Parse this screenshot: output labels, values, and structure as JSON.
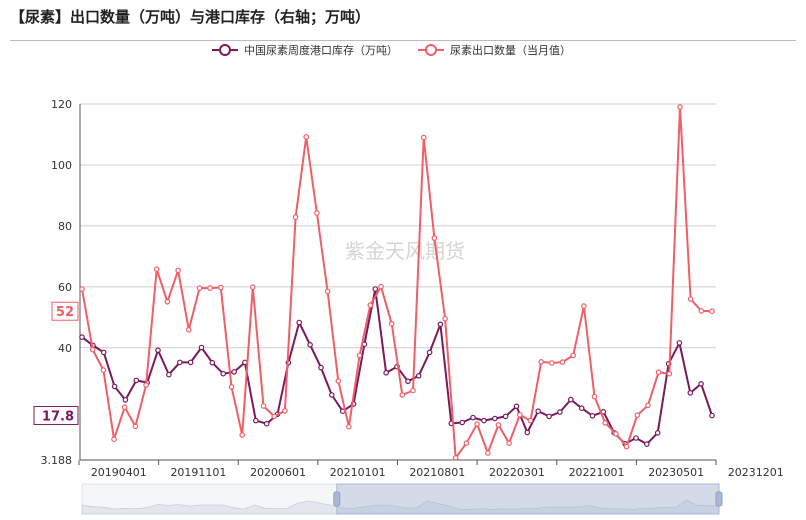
{
  "header": {
    "title": "【尿素】出口数量（万吨）与港口库存（右轴；万吨）"
  },
  "chart_data": {
    "type": "line",
    "title": "【尿素】出口数量（万吨）与港口库存（右轴；万吨）",
    "xlabel": "",
    "ylabel": "",
    "ylim": [
      3.188,
      120
    ],
    "yticks": [
      "3.188",
      "40",
      "60",
      "80",
      "100",
      "120"
    ],
    "x_tick_labels": [
      "20190401",
      "20191101",
      "20200601",
      "20210101",
      "20210801",
      "20220301",
      "20221001",
      "20230501",
      "20231201"
    ],
    "grid": true,
    "legend_position": "top-center",
    "watermark": "紫金天风期货",
    "markers": [
      {
        "series": 0,
        "label": "17.8",
        "value": 17.8
      },
      {
        "series": 1,
        "label": "52",
        "value": 52
      }
    ],
    "series": [
      {
        "name": "中国尿素周度港口库存（万吨）",
        "color": "#7a1a5c",
        "values": [
          43.5,
          40.8,
          38.5,
          27.3,
          22.9,
          29.3,
          28.6,
          39.2,
          31.2,
          35.2,
          35.2,
          40.1,
          35.1,
          31.5,
          32.1,
          35.2,
          16.1,
          15.1,
          18.2,
          35.1,
          48.3,
          41.0,
          33.5,
          24.5,
          19.2,
          21.6,
          41.2,
          59.3,
          31.8,
          33.8,
          29.0,
          30.8,
          38.5,
          47.7,
          15.2,
          15.5,
          17.1,
          16.1,
          16.8,
          17.5,
          20.8,
          12.2,
          19.2,
          17.5,
          18.9,
          23.0,
          20.2,
          17.7,
          19.0,
          12.1,
          8.5,
          10.4,
          8.4,
          12.1,
          34.8,
          41.6,
          25.2,
          28.2,
          17.8
        ]
      },
      {
        "name": "尿素出口数量（当月值）",
        "color": "#ef5f68",
        "values": [
          59.3,
          39.4,
          32.7,
          10.0,
          20.5,
          14.2,
          27.8,
          65.8,
          55.1,
          65.4,
          45.9,
          59.6,
          59.6,
          59.8,
          27.2,
          11.4,
          59.9,
          20.9,
          17.5,
          19.3,
          82.9,
          109.2,
          84.2,
          58.5,
          29.1,
          14.1,
          37.5,
          54.0,
          60.1,
          47.9,
          24.5,
          26.0,
          109.0,
          76.0,
          49.6,
          3.9,
          8.7,
          15.0,
          5.5,
          14.7,
          8.7,
          18.0,
          16.1,
          35.4,
          35.0,
          35.3,
          37.5,
          53.7,
          24.0,
          15.4,
          11.8,
          7.6,
          17.9,
          21.1,
          32.0,
          31.5,
          119.0,
          56.0,
          52.1,
          52.0
        ]
      }
    ]
  },
  "data_zoom": {
    "range_start_fraction": 0.4,
    "range_end_fraction": 1.0
  }
}
